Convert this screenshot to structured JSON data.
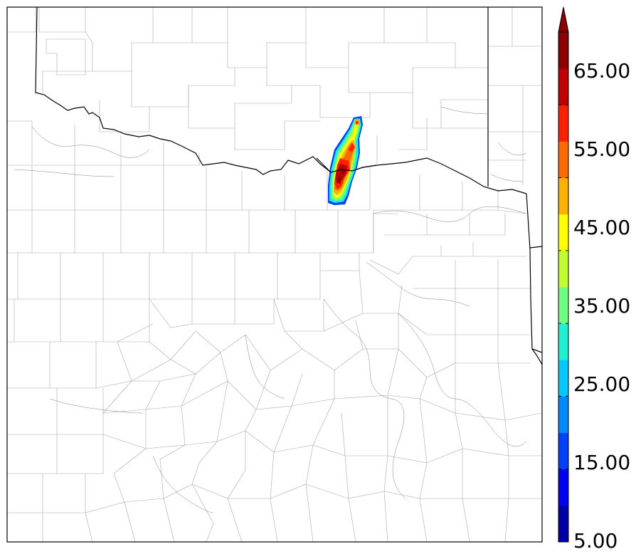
{
  "colorbar": {
    "tick_labels": [
      "65.00",
      "55.00",
      "45.00",
      "35.00",
      "25.00",
      "15.00",
      "5.00"
    ],
    "levels": [
      5,
      10,
      15,
      20,
      25,
      30,
      35,
      40,
      45,
      50,
      55,
      60,
      65,
      70
    ],
    "colors": [
      "#0000a8",
      "#0000f0",
      "#0040ff",
      "#0088ff",
      "#00c8ff",
      "#20f0d0",
      "#70ff80",
      "#c0ff30",
      "#ffff00",
      "#ffb000",
      "#ff6a00",
      "#ff2000",
      "#c00000",
      "#8a0000"
    ],
    "extend": "max"
  },
  "boundary_colors": {
    "county": "#a0a0a0",
    "state": "#000000"
  }
}
